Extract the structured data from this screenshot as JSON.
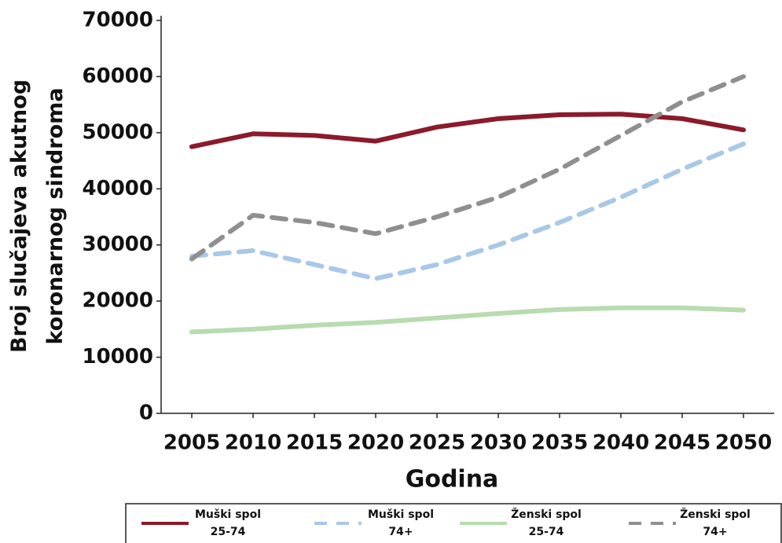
{
  "chart_data": {
    "type": "line",
    "x": [
      2005,
      2010,
      2015,
      2020,
      2025,
      2030,
      2035,
      2040,
      2045,
      2050
    ],
    "xlim": [
      2002.5,
      2052.5
    ],
    "xticks": [
      2005,
      2010,
      2015,
      2020,
      2025,
      2030,
      2035,
      2040,
      2045,
      2050
    ],
    "ylim": [
      0,
      70000
    ],
    "yticks": [
      0,
      10000,
      20000,
      30000,
      40000,
      50000,
      60000,
      70000
    ],
    "xlabel": "Godina",
    "ylabel": "Broj slučajeva akutnog\nkoronarnog sindroma",
    "series": [
      {
        "name": "Muški spol\n25-74",
        "color": "#8b1a2b",
        "dashed": false,
        "values": [
          47500,
          49800,
          49500,
          48500,
          51000,
          52500,
          53200,
          53300,
          52500,
          50500
        ]
      },
      {
        "name": "Muški spol\n74+",
        "color": "#a9c8e8",
        "dashed": true,
        "values": [
          28000,
          29000,
          26500,
          24000,
          26500,
          30000,
          34000,
          38500,
          43500,
          48000
        ]
      },
      {
        "name": "Ženski spol\n25-74",
        "color": "#b8dbb0",
        "dashed": false,
        "values": [
          14500,
          15000,
          15700,
          16200,
          17000,
          17800,
          18500,
          18800,
          18800,
          18400
        ]
      },
      {
        "name": "Ženski spol\n74+",
        "color": "#8f8f8f",
        "dashed": true,
        "values": [
          27500,
          35300,
          34000,
          32000,
          35000,
          38500,
          43500,
          49500,
          55500,
          60000
        ]
      }
    ]
  }
}
